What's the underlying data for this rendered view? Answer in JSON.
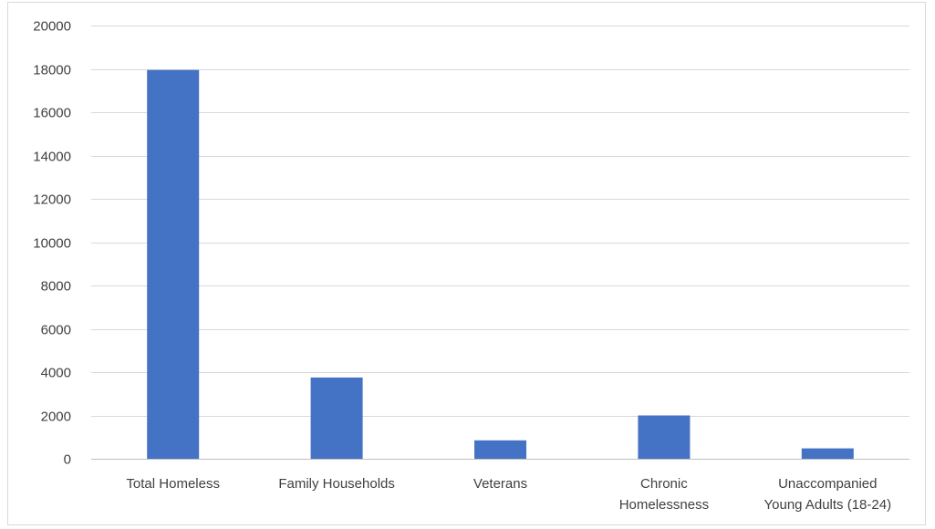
{
  "chart_data": {
    "type": "bar",
    "categories": [
      [
        "Total Homeless"
      ],
      [
        "Family Households"
      ],
      [
        "Veterans"
      ],
      [
        "Chronic",
        "Homelessness"
      ],
      [
        "Unaccompanied",
        "Young Adults (18-24)"
      ]
    ],
    "values": [
      17950,
      3750,
      850,
      2000,
      480
    ],
    "ylim": [
      0,
      20000
    ],
    "yticks": [
      0,
      2000,
      4000,
      6000,
      8000,
      10000,
      12000,
      14000,
      16000,
      18000,
      20000
    ],
    "title": "",
    "xlabel": "",
    "ylabel": "",
    "grid": true,
    "legend": "none",
    "colors": {
      "bar": "#4472C4",
      "grid": "#d9d9d9",
      "axis": "#bfbfbf",
      "text": "#404040"
    }
  }
}
